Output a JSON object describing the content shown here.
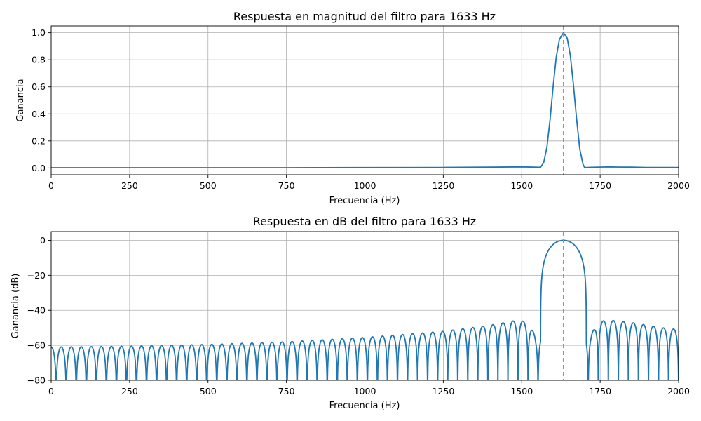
{
  "chart_data": [
    {
      "type": "line",
      "title": "Respuesta en magnitud del filtro para 1633 Hz",
      "xlabel": "Frecuencia (Hz)",
      "ylabel": "Ganancia",
      "xlim": [
        0,
        2000
      ],
      "ylim": [
        -0.05,
        1.05
      ],
      "x_ticks": [
        0,
        250,
        500,
        750,
        1000,
        1250,
        1500,
        1750,
        2000
      ],
      "y_ticks": [
        0.0,
        0.2,
        0.4,
        0.6,
        0.8,
        1.0
      ],
      "y_tick_labels": [
        "0.0",
        "0.2",
        "0.4",
        "0.6",
        "0.8",
        "1.0"
      ],
      "grid": true,
      "center_frequency": 1633,
      "series": [
        {
          "color": "#1f77b4",
          "x": [
            0,
            250,
            500,
            750,
            1000,
            1250,
            1400,
            1500,
            1540,
            1560,
            1570,
            1580,
            1590,
            1600,
            1610,
            1620,
            1633,
            1645,
            1655,
            1665,
            1675,
            1685,
            1695,
            1700,
            1705,
            1720,
            1760,
            1780,
            1800,
            1850,
            1900,
            2000
          ],
          "y": [
            0.002,
            0.002,
            0.002,
            0.002,
            0.003,
            0.004,
            0.006,
            0.008,
            0.006,
            0.005,
            0.04,
            0.15,
            0.35,
            0.6,
            0.82,
            0.95,
            1.0,
            0.96,
            0.83,
            0.61,
            0.36,
            0.14,
            0.03,
            0.005,
            0.003,
            0.005,
            0.007,
            0.008,
            0.007,
            0.006,
            0.004,
            0.004
          ]
        }
      ],
      "marker_color": "#ff6b6b"
    },
    {
      "type": "line",
      "title": "Respuesta en dB del filtro para 1633 Hz",
      "xlabel": "Frecuencia (Hz)",
      "ylabel": "Ganancia (dB)",
      "xlim": [
        0,
        2000
      ],
      "ylim": [
        -80,
        5
      ],
      "x_ticks": [
        0,
        250,
        500,
        750,
        1000,
        1250,
        1500,
        1750,
        2000
      ],
      "y_ticks": [
        -80,
        -60,
        -40,
        -20,
        0
      ],
      "y_tick_labels": [
        "−80",
        "−60",
        "−40",
        "−20",
        "0"
      ],
      "grid": true,
      "center_frequency": 1633,
      "main_lobe": [
        1560,
        1706
      ],
      "lobe_spacing_hz": 32,
      "sidelobe_peaks_db": [
        {
          "f": 0,
          "db": -61
        },
        {
          "f": 250,
          "db": -60.5
        },
        {
          "f": 500,
          "db": -59.5
        },
        {
          "f": 750,
          "db": -58
        },
        {
          "f": 1000,
          "db": -55.5
        },
        {
          "f": 1250,
          "db": -52
        },
        {
          "f": 1400,
          "db": -48.5
        },
        {
          "f": 1490,
          "db": -45.5
        },
        {
          "f": 1520,
          "db": -47
        },
        {
          "f": 1545,
          "db": -55
        },
        {
          "f": 1720,
          "db": -54
        },
        {
          "f": 1745,
          "db": -46.5
        },
        {
          "f": 1777,
          "db": -45.5
        },
        {
          "f": 1850,
          "db": -47
        },
        {
          "f": 1950,
          "db": -50
        },
        {
          "f": 2000,
          "db": -51
        }
      ],
      "series": [
        {
          "color": "#1f77b4"
        }
      ],
      "marker_color": "#ff6b6b"
    }
  ]
}
